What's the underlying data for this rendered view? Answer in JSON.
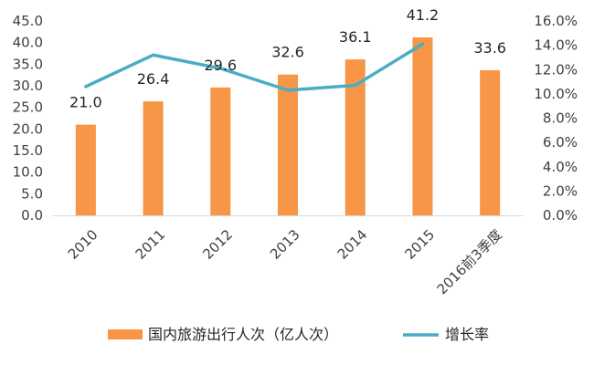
{
  "chart_data": {
    "type": "bar",
    "categories": [
      "2010",
      "2011",
      "2012",
      "2013",
      "2014",
      "2015",
      "2016前3季度"
    ],
    "series": [
      {
        "name": "国内旅游出行人次（亿人次）",
        "type": "bar",
        "axis": "left",
        "color": "#F79646",
        "values": [
          21.0,
          26.4,
          29.6,
          32.6,
          36.1,
          41.2,
          33.6
        ],
        "labels": [
          "21.0",
          "26.4",
          "29.6",
          "32.6",
          "36.1",
          "41.2",
          "33.6"
        ]
      },
      {
        "name": "增长率",
        "type": "line",
        "axis": "right",
        "color": "#4BACC6",
        "values": [
          10.6,
          13.2,
          12.1,
          10.3,
          10.7,
          14.1,
          null
        ]
      }
    ],
    "y_left": {
      "ylim": [
        0,
        45
      ],
      "ticks": [
        "0.0",
        "5.0",
        "10.0",
        "15.0",
        "20.0",
        "25.0",
        "30.0",
        "35.0",
        "40.0",
        "45.0"
      ]
    },
    "y_right": {
      "ylim": [
        0,
        16
      ],
      "ticks": [
        "0.0%",
        "2.0%",
        "4.0%",
        "6.0%",
        "8.0%",
        "10.0%",
        "12.0%",
        "14.0%",
        "16.0%"
      ]
    },
    "grid": false,
    "legend_position": "bottom"
  }
}
